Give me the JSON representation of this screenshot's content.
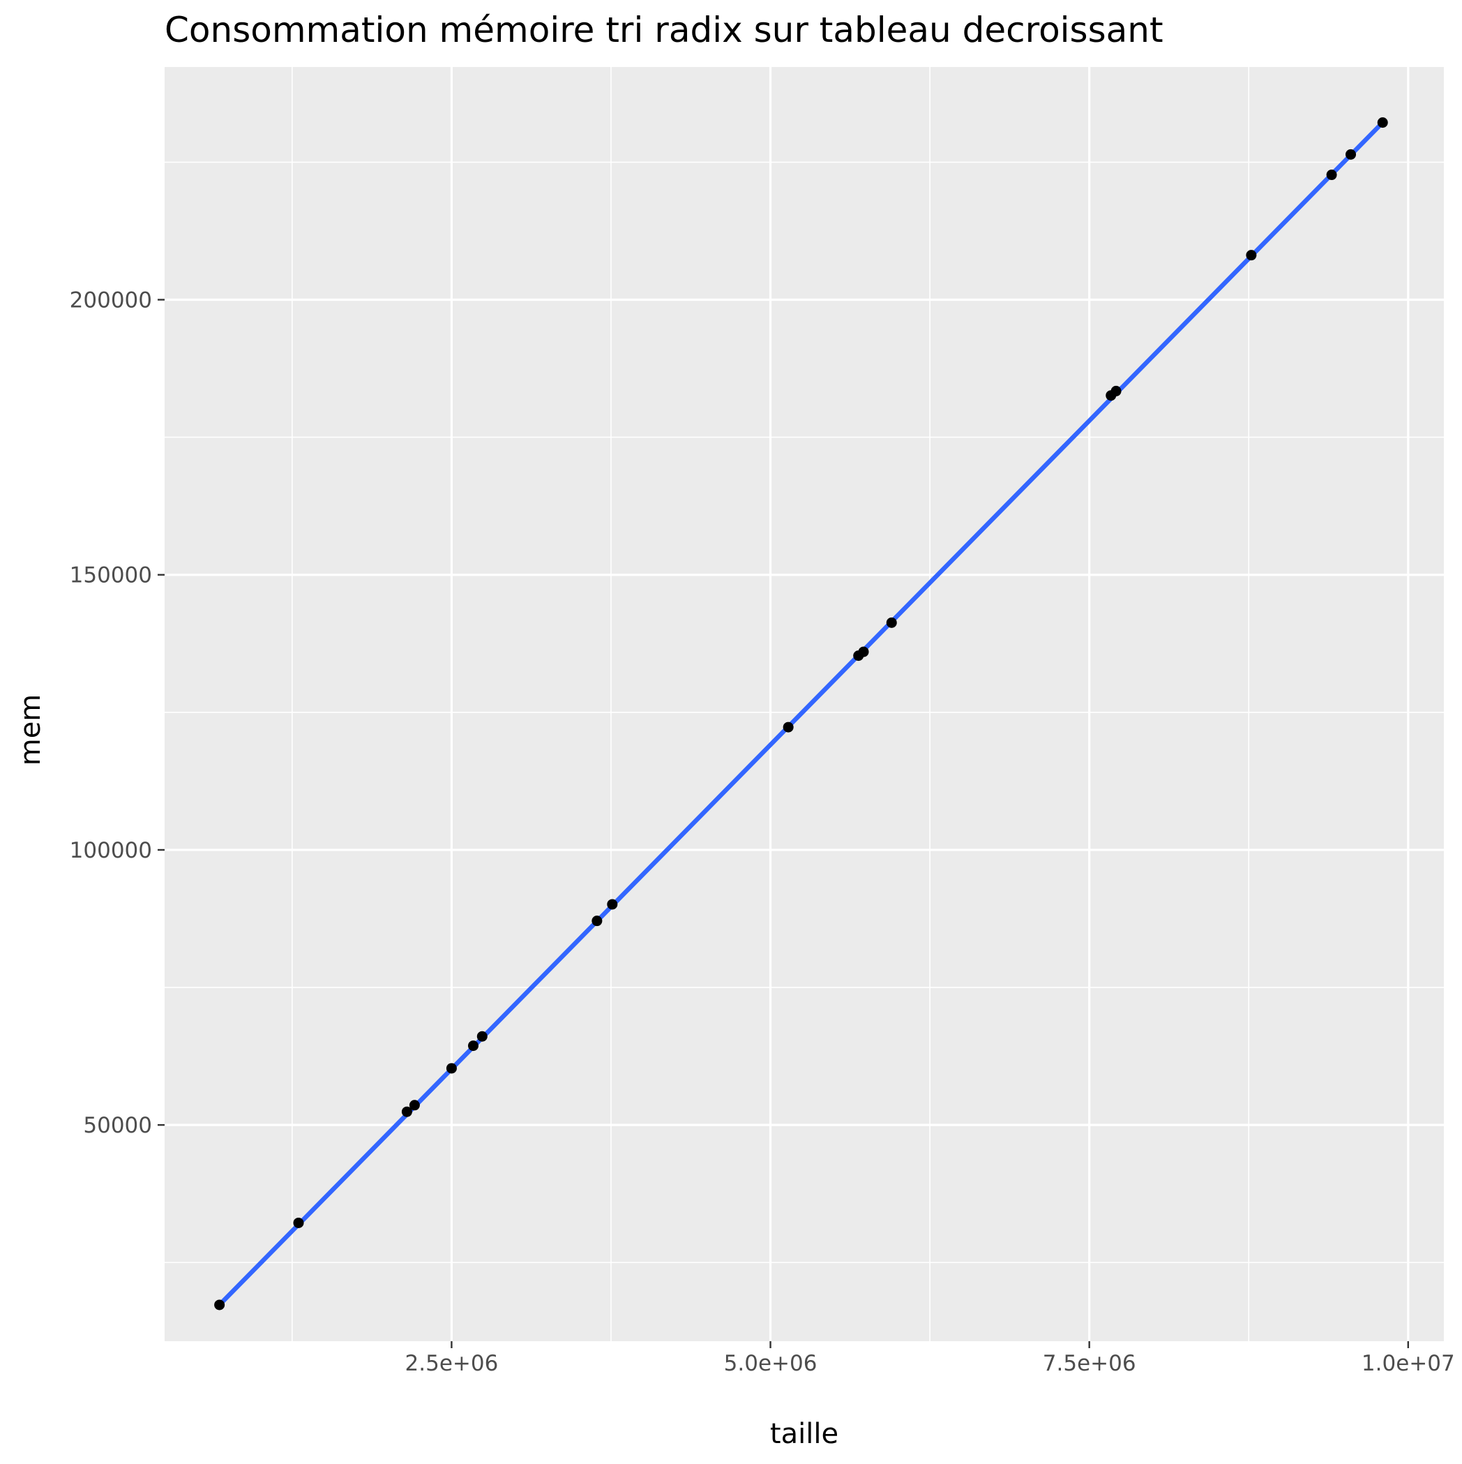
{
  "chart_data": {
    "type": "scatter",
    "title": "Consommation mémoire tri radix sur tableau decroissant",
    "xlabel": "taille",
    "ylabel": "mem",
    "xlim": [
      250000,
      10280000
    ],
    "ylim": [
      10700,
      242300
    ],
    "x_ticks": [
      2500000,
      5000000,
      7500000,
      10000000
    ],
    "x_tick_labels": [
      "2.5e+06",
      "5.0e+06",
      "7.5e+06",
      "1.0e+07"
    ],
    "y_ticks": [
      50000,
      100000,
      150000,
      200000
    ],
    "y_tick_labels": [
      "50000",
      "100000",
      "150000",
      "200000"
    ],
    "grid": true,
    "points": [
      {
        "x": 680000,
        "y": 17300
      },
      {
        "x": 1300000,
        "y": 32200
      },
      {
        "x": 2150000,
        "y": 52400
      },
      {
        "x": 2210000,
        "y": 53600
      },
      {
        "x": 2500000,
        "y": 60300
      },
      {
        "x": 2670000,
        "y": 64400
      },
      {
        "x": 2740000,
        "y": 66100
      },
      {
        "x": 3640000,
        "y": 87100
      },
      {
        "x": 3760000,
        "y": 90100
      },
      {
        "x": 5140000,
        "y": 122300
      },
      {
        "x": 5690000,
        "y": 135300
      },
      {
        "x": 5730000,
        "y": 136000
      },
      {
        "x": 5950000,
        "y": 141300
      },
      {
        "x": 7670000,
        "y": 182600
      },
      {
        "x": 7710000,
        "y": 183400
      },
      {
        "x": 8770000,
        "y": 208100
      },
      {
        "x": 9400000,
        "y": 222700
      },
      {
        "x": 9550000,
        "y": 226400
      },
      {
        "x": 9800000,
        "y": 232200
      }
    ],
    "fit_line": {
      "x": [
        680000,
        9800000
      ],
      "y": [
        17300,
        232200
      ]
    },
    "colors": {
      "panel": "#ebebeb",
      "grid": "#ffffff",
      "point": "#000000",
      "fit_line": "#3366ff",
      "tick": "#333333"
    }
  }
}
